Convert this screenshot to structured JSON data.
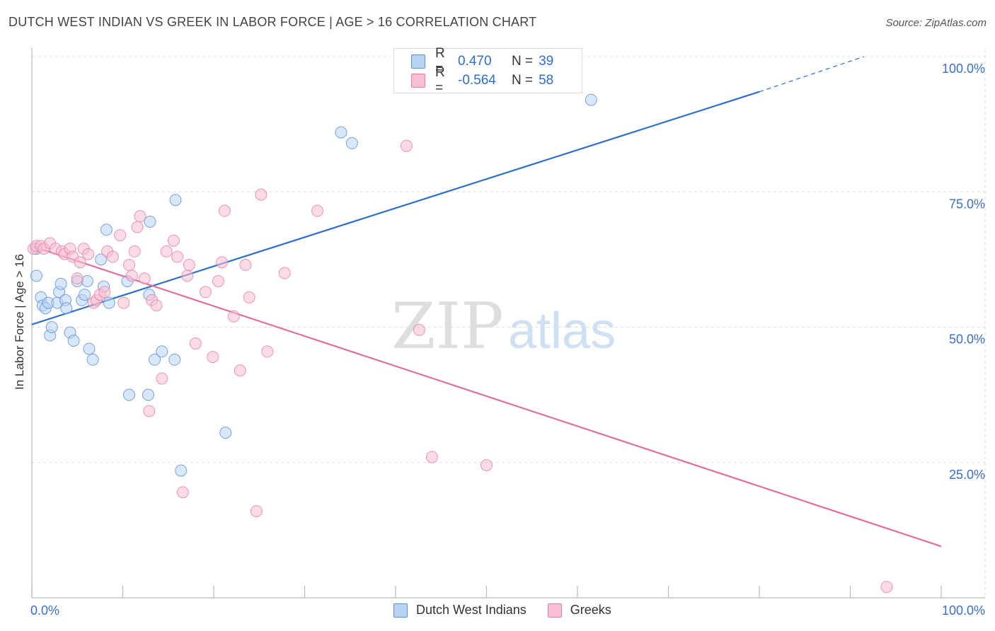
{
  "title": "DUTCH WEST INDIAN VS GREEK IN LABOR FORCE | AGE > 16 CORRELATION CHART",
  "source": "Source: ZipAtlas.com",
  "watermark": {
    "zip": "ZIP",
    "atlas": "atlas"
  },
  "colors": {
    "blue_fill": "#b9d3f5",
    "blue_stroke": "#5b8fd6",
    "blue_line": "#2e6fcb",
    "pink_fill": "#f7c0d1",
    "pink_stroke": "#e57ea0",
    "pink_line": "#e0709a",
    "tick_label": "#3a6fc9"
  },
  "legend": {
    "rows": [
      {
        "r_label": "R =",
        "r_value": "0.470",
        "n_label": "N =",
        "n_value": "39",
        "color": "#b9d3f5",
        "border": "#5b8fd6"
      },
      {
        "r_label": "R =",
        "r_value": "-0.564",
        "n_label": "N =",
        "n_value": "58",
        "color": "#f7c0d1",
        "border": "#e57ea0"
      }
    ]
  },
  "bottom_legend": [
    {
      "label": "Dutch West Indians",
      "color": "#b9d3f5",
      "border": "#5b8fd6"
    },
    {
      "label": "Greeks",
      "color": "#f7c0d1",
      "border": "#e57ea0"
    }
  ],
  "chart_data": {
    "type": "scatter",
    "title": "DUTCH WEST INDIAN VS GREEK IN LABOR FORCE | AGE > 16 CORRELATION CHART",
    "xlabel": "",
    "ylabel": "In Labor Force | Age > 16",
    "xlim": [
      0,
      100
    ],
    "ylim": [
      0,
      100
    ],
    "x_tick_labels": [
      "0.0%",
      "100.0%"
    ],
    "y_ticks": [
      25,
      50,
      75,
      100
    ],
    "y_tick_labels": [
      "25.0%",
      "50.0%",
      "75.0%",
      "100.0%"
    ],
    "series": [
      {
        "name": "Dutch West Indians",
        "points": [
          [
            0.5,
            64.5
          ],
          [
            0.5,
            59.5
          ],
          [
            1.0,
            55.5
          ],
          [
            1.2,
            54
          ],
          [
            1.5,
            53.5
          ],
          [
            1.8,
            54.5
          ],
          [
            2.0,
            48.5
          ],
          [
            2.2,
            50
          ],
          [
            2.8,
            54.5
          ],
          [
            3.0,
            56.5
          ],
          [
            3.2,
            58
          ],
          [
            3.7,
            55
          ],
          [
            3.8,
            53.5
          ],
          [
            4.2,
            49
          ],
          [
            4.6,
            47.5
          ],
          [
            5.0,
            58.5
          ],
          [
            5.5,
            55
          ],
          [
            5.8,
            56
          ],
          [
            6.1,
            58.5
          ],
          [
            6.3,
            46
          ],
          [
            6.7,
            44
          ],
          [
            7.6,
            62.5
          ],
          [
            7.9,
            57.5
          ],
          [
            8.2,
            68
          ],
          [
            8.5,
            54.5
          ],
          [
            10.5,
            58.5
          ],
          [
            10.7,
            37.5
          ],
          [
            12.8,
            37.5
          ],
          [
            12.9,
            56
          ],
          [
            13.0,
            69.5
          ],
          [
            13.5,
            44
          ],
          [
            14.3,
            45.5
          ],
          [
            15.7,
            44
          ],
          [
            15.8,
            73.5
          ],
          [
            16.4,
            23.5
          ],
          [
            21.3,
            30.5
          ],
          [
            34.0,
            86
          ],
          [
            35.2,
            84
          ],
          [
            61.5,
            92
          ]
        ],
        "trend": {
          "x0": 0,
          "y0": 50.5,
          "x1": 80,
          "y1": 93.5,
          "dash_x1": 91.5,
          "dash_y1": 100
        }
      },
      {
        "name": "Greeks",
        "points": [
          [
            0.2,
            64.5
          ],
          [
            0.5,
            65
          ],
          [
            1.0,
            65
          ],
          [
            1.3,
            64.5
          ],
          [
            2.0,
            65.5
          ],
          [
            2.6,
            64.5
          ],
          [
            3.3,
            64
          ],
          [
            3.6,
            63.5
          ],
          [
            4.2,
            64.5
          ],
          [
            4.5,
            63
          ],
          [
            5.0,
            59
          ],
          [
            5.3,
            62
          ],
          [
            5.7,
            64.5
          ],
          [
            6.2,
            63.5
          ],
          [
            6.8,
            54.5
          ],
          [
            7.1,
            55
          ],
          [
            7.5,
            56
          ],
          [
            8.0,
            56.5
          ],
          [
            8.3,
            64
          ],
          [
            8.9,
            63
          ],
          [
            9.7,
            67
          ],
          [
            10.1,
            54.5
          ],
          [
            10.7,
            61.5
          ],
          [
            11.0,
            59.5
          ],
          [
            11.3,
            64
          ],
          [
            11.6,
            68.5
          ],
          [
            11.9,
            70.5
          ],
          [
            12.4,
            59
          ],
          [
            12.9,
            34.5
          ],
          [
            13.2,
            55
          ],
          [
            13.7,
            54
          ],
          [
            14.3,
            40.5
          ],
          [
            14.8,
            64
          ],
          [
            15.6,
            66
          ],
          [
            16.0,
            63
          ],
          [
            16.6,
            19.5
          ],
          [
            17.1,
            59.5
          ],
          [
            17.3,
            61.5
          ],
          [
            18.0,
            47
          ],
          [
            19.1,
            56.5
          ],
          [
            19.9,
            44.5
          ],
          [
            20.5,
            58.5
          ],
          [
            20.9,
            62
          ],
          [
            21.2,
            71.5
          ],
          [
            22.2,
            52
          ],
          [
            22.9,
            42
          ],
          [
            23.5,
            61.5
          ],
          [
            23.9,
            55.5
          ],
          [
            24.7,
            16
          ],
          [
            25.2,
            74.5
          ],
          [
            25.9,
            45.5
          ],
          [
            27.8,
            60
          ],
          [
            31.4,
            71.5
          ],
          [
            41.2,
            83.5
          ],
          [
            42.6,
            49.5
          ],
          [
            44.0,
            26
          ],
          [
            50.0,
            24.5
          ],
          [
            94.0,
            2
          ]
        ],
        "trend": {
          "x0": 0,
          "y0": 65,
          "x1": 100,
          "y1": 9.5
        }
      }
    ]
  }
}
